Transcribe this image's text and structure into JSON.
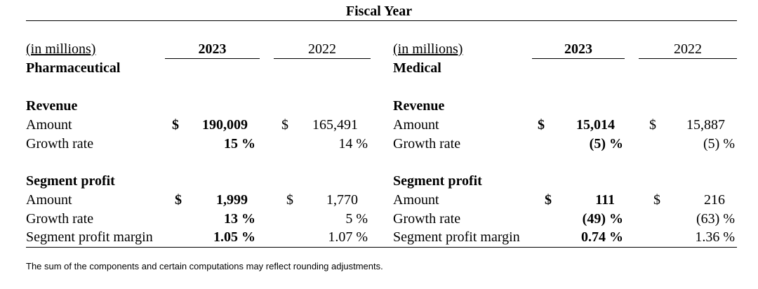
{
  "header": {
    "title": "Fiscal Year"
  },
  "left": {
    "unit_label": "(in millions)",
    "segment": "Pharmaceutical",
    "year_current": "2023",
    "year_prior": "2022",
    "revenue": {
      "heading": "Revenue",
      "amount_label": "Amount",
      "amount_cur_sym": "$",
      "amount_cur": "190,009",
      "amount_pri_sym": "$",
      "amount_pri": "165,491",
      "growth_label": "Growth rate",
      "growth_cur": "15 %",
      "growth_pri": "14 %"
    },
    "profit": {
      "heading": "Segment profit",
      "amount_label": "Amount",
      "amount_cur_sym": "$",
      "amount_cur": "1,999",
      "amount_pri_sym": "$",
      "amount_pri": "1,770",
      "growth_label": "Growth rate",
      "growth_cur": "13 %",
      "growth_pri": "5 %",
      "margin_label": "Segment profit margin",
      "margin_cur": "1.05 %",
      "margin_pri": "1.07 %"
    }
  },
  "right": {
    "unit_label": "(in millions)",
    "segment": "Medical",
    "year_current": "2023",
    "year_prior": "2022",
    "revenue": {
      "heading": "Revenue",
      "amount_label": "Amount",
      "amount_cur_sym": "$",
      "amount_cur": "15,014",
      "amount_pri_sym": "$",
      "amount_pri": "15,887",
      "growth_label": "Growth rate",
      "growth_cur": "(5) %",
      "growth_pri": "(5) %"
    },
    "profit": {
      "heading": "Segment profit",
      "amount_label": "Amount",
      "amount_cur_sym": "$",
      "amount_cur": "111",
      "amount_pri_sym": "$",
      "amount_pri": "216",
      "growth_label": "Growth rate",
      "growth_cur": "(49) %",
      "growth_pri": "(63) %",
      "margin_label": "Segment profit margin",
      "margin_cur": "0.74 %",
      "margin_pri": "1.36 %"
    }
  },
  "footnote": "The sum of the components and certain computations may reflect rounding adjustments."
}
